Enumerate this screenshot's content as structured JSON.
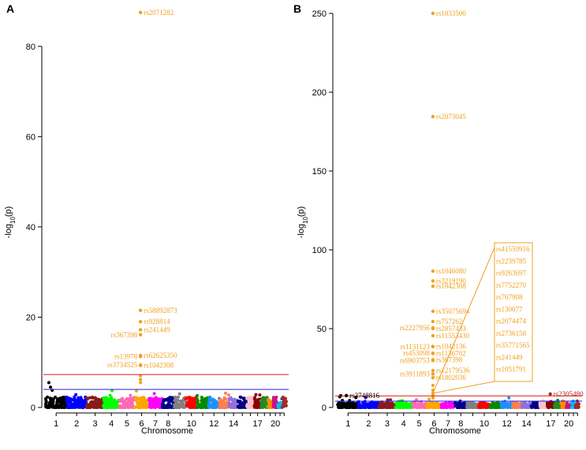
{
  "colors": {
    "chromosomes": [
      "#000000",
      "#0000ff",
      "#8b1a1a",
      "#00ff00",
      "#ff69b4",
      "#ffa500",
      "#ff00ff",
      "#00008b",
      "#808080",
      "#ff0000",
      "#008b00",
      "#1e90ff",
      "#ff7f50",
      "#9370db",
      "#000080",
      "#ffc0cb",
      "#8b0000",
      "#228b22",
      "#ff8c00",
      "#c71585",
      "#00bfff",
      "#a52a2a"
    ],
    "highlight": "#f0a020",
    "genomewide_line": "#e02020",
    "suggestive_line": "#2020e0"
  },
  "chart_data": [
    {
      "panel": "A",
      "type": "scatter",
      "xlabel": "Chromosome",
      "ylabel": "-log10(p)",
      "ylim": [
        0,
        88
      ],
      "yticks": [
        0,
        20,
        40,
        60,
        80
      ],
      "xtick_labels": [
        "1",
        "2",
        "3",
        "4",
        "5",
        "6",
        "7",
        "8",
        "10",
        "12",
        "14",
        "17",
        "20"
      ],
      "xtick_chromosomes": [
        1,
        2,
        3,
        4,
        5,
        6,
        7,
        8,
        10,
        12,
        14,
        17,
        20
      ],
      "genomewide_threshold": 7.3,
      "suggestive_threshold": 4,
      "chr1_peak": [
        5.5,
        4.5,
        3.8
      ],
      "chr6_extra_points": [
        7,
        6.2,
        5.5
      ],
      "annotated_snps": [
        {
          "label": "rs2071282",
          "chromosome": 6,
          "p": 87.5,
          "color": "#f0a020",
          "side": "right"
        },
        {
          "label": "rs58892873",
          "chromosome": 6,
          "p": 21.5,
          "color": "#f0a020",
          "side": "right"
        },
        {
          "label": "rs928814",
          "chromosome": 6,
          "p": 19,
          "color": "#f0a020",
          "side": "right"
        },
        {
          "label": "rs241449",
          "chromosome": 6,
          "p": 17.2,
          "color": "#f0a020",
          "side": "right"
        },
        {
          "label": "rs367398",
          "chromosome": 6,
          "p": 16.1,
          "color": "#f0a020",
          "side": "left"
        },
        {
          "label": "rs62625350",
          "chromosome": 6,
          "p": 11.5,
          "color": "#f0a020",
          "side": "right"
        },
        {
          "label": "rs13978",
          "chromosome": 6,
          "p": 11.3,
          "color": "#f0a020",
          "side": "left"
        },
        {
          "label": "rs3734525",
          "chromosome": 6,
          "p": 9.4,
          "color": "#f0a020",
          "side": "left"
        },
        {
          "label": "rs1042308",
          "chromosome": 6,
          "p": 9.3,
          "color": "#f0a020",
          "side": "right"
        }
      ]
    },
    {
      "panel": "B",
      "type": "scatter",
      "xlabel": "Chromosome",
      "ylabel": "-log10(p)",
      "ylim": [
        0,
        252
      ],
      "yticks": [
        0,
        50,
        100,
        150,
        200,
        250
      ],
      "xtick_labels": [
        "1",
        "2",
        "3",
        "4",
        "5",
        "6",
        "7",
        "8",
        "10",
        "12",
        "14",
        "17",
        "20"
      ],
      "xtick_chromosomes": [
        1,
        2,
        3,
        4,
        5,
        6,
        7,
        8,
        10,
        12,
        14,
        17,
        20
      ],
      "genomewide_threshold": 7.3,
      "suggestive_threshold": 4,
      "chr1_peak": [
        7.5,
        4.5
      ],
      "chr6_extra_points": [
        14,
        11,
        9,
        7.5,
        6
      ],
      "annotated_snps": [
        {
          "label": "rs1033500",
          "chromosome": 6,
          "p": 250,
          "color": "#f0a020",
          "side": "right"
        },
        {
          "label": "rs2073045",
          "chromosome": 6,
          "p": 184.5,
          "color": "#f0a020",
          "side": "right"
        },
        {
          "label": "rs1046080",
          "chromosome": 6,
          "p": 86.5,
          "color": "#f0a020",
          "side": "right"
        },
        {
          "label": "rs3219190",
          "chromosome": 6,
          "p": 80.3,
          "color": "#f0a020",
          "side": "right"
        },
        {
          "label": "rs1042308",
          "chromosome": 6,
          "p": 76.9,
          "color": "#f0a020",
          "side": "right"
        },
        {
          "label": "rs35075694",
          "chromosome": 6,
          "p": 61,
          "color": "#f0a020",
          "side": "right"
        },
        {
          "label": "rs757262",
          "chromosome": 6,
          "p": 54.5,
          "color": "#f0a020",
          "side": "right"
        },
        {
          "label": "rs2227956",
          "chromosome": 6,
          "p": 50.5,
          "color": "#f0a020",
          "side": "left"
        },
        {
          "label": "rs2857433",
          "chromosome": 6,
          "p": 50,
          "color": "#f0a020",
          "side": "right"
        },
        {
          "label": "rs11553430",
          "chromosome": 6,
          "p": 45.5,
          "color": "#f0a020",
          "side": "right"
        },
        {
          "label": "rs1131123",
          "chromosome": 6,
          "p": 38.6,
          "color": "#f0a020",
          "side": "left"
        },
        {
          "label": "rs1042136",
          "chromosome": 6,
          "p": 38.7,
          "color": "#f0a020",
          "side": "right"
        },
        {
          "label": "rs453098",
          "chromosome": 6,
          "p": 34.4,
          "color": "#f0a020",
          "side": "left"
        },
        {
          "label": "rs1136702",
          "chromosome": 6,
          "p": 34.2,
          "color": "#f0a020",
          "side": "right"
        },
        {
          "label": "rs6903753",
          "chromosome": 6,
          "p": 29.8,
          "color": "#f0a020",
          "side": "left"
        },
        {
          "label": "rs367398",
          "chromosome": 6,
          "p": 30.2,
          "color": "#f0a020",
          "side": "right"
        },
        {
          "label": "rs12179536",
          "chromosome": 6,
          "p": 23.4,
          "color": "#f0a020",
          "side": "right"
        },
        {
          "label": "rs3911893",
          "chromosome": 6,
          "p": 21.2,
          "color": "#f0a020",
          "side": "left"
        },
        {
          "label": "rs1802036",
          "chromosome": 6,
          "p": 18.9,
          "color": "#f0a020",
          "side": "right"
        },
        {
          "label": "rs3748816",
          "chromosome": 1,
          "p": 7.5,
          "color": "#000000",
          "side": "right"
        },
        {
          "label": "rs2305480",
          "chromosome": 17,
          "p": 8.5,
          "color": "#b22222",
          "side": "right"
        }
      ],
      "inset_box_labels": [
        "rs41559916",
        "rs2239785",
        "rs9263697",
        "rs7752270",
        "rs707908",
        "rs130077",
        "rs2074474",
        "rs2736158",
        "rs35771565",
        "rs241449",
        "rs1051791"
      ]
    }
  ],
  "panelA": {
    "letter": "A",
    "xlabel": "Chromosome",
    "ylabel_main": "-log",
    "ylabel_sub": "10",
    "ylabel_p": "(p)"
  },
  "panelB": {
    "letter": "B",
    "xlabel": "Chromosome",
    "ylabel_main": "-log",
    "ylabel_sub": "10",
    "ylabel_p": "(p)"
  }
}
